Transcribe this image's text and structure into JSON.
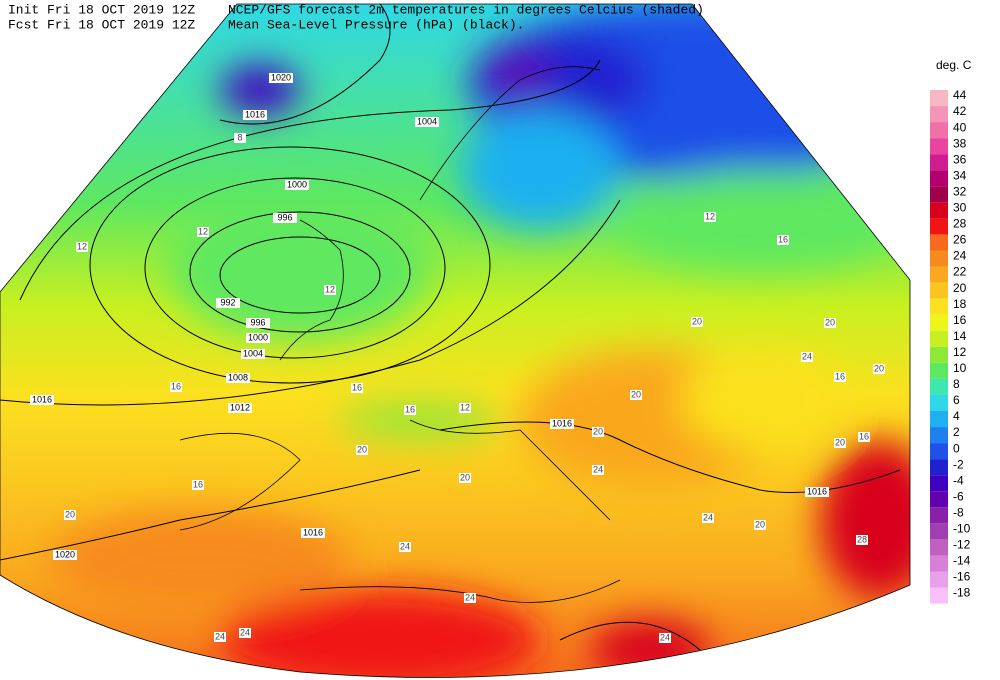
{
  "header": {
    "init": "Init  Fri 18 OCT 2019 12Z",
    "fcst": "Fcst Fri 18 OCT 2019 12Z",
    "title": "NCEP/GFS forecast 2m temperatures in degrees Celcius (shaded)",
    "subtitle": "Mean Sea-Level Pressure (hPa) (black)."
  },
  "legend": {
    "title": "deg. C",
    "entries": [
      {
        "label": 44,
        "color": "#f7b8c4"
      },
      {
        "label": 42,
        "color": "#f494b6"
      },
      {
        "label": 40,
        "color": "#f070aa"
      },
      {
        "label": 38,
        "color": "#e844a0"
      },
      {
        "label": 36,
        "color": "#d01c90"
      },
      {
        "label": 34,
        "color": "#b4006e"
      },
      {
        "label": 32,
        "color": "#a0004a"
      },
      {
        "label": 30,
        "color": "#d8001c"
      },
      {
        "label": 28,
        "color": "#f01414"
      },
      {
        "label": 26,
        "color": "#f56a1e"
      },
      {
        "label": 24,
        "color": "#f78a1e"
      },
      {
        "label": 22,
        "color": "#f9a81f"
      },
      {
        "label": 20,
        "color": "#fbc520"
      },
      {
        "label": 18,
        "color": "#fbe11f"
      },
      {
        "label": 16,
        "color": "#eef51a"
      },
      {
        "label": 14,
        "color": "#c8f020"
      },
      {
        "label": 12,
        "color": "#8fe838"
      },
      {
        "label": 10,
        "color": "#5ee860"
      },
      {
        "label": 8,
        "color": "#3de8b0"
      },
      {
        "label": 6,
        "color": "#2ed8e8"
      },
      {
        "label": 4,
        "color": "#1fb0f0"
      },
      {
        "label": 2,
        "color": "#1f80f0"
      },
      {
        "label": 0,
        "color": "#1f50e8"
      },
      {
        "label": -2,
        "color": "#2020d0"
      },
      {
        "label": -4,
        "color": "#4000c0"
      },
      {
        "label": -6,
        "color": "#6000b0"
      },
      {
        "label": -8,
        "color": "#8a20a8"
      },
      {
        "label": -10,
        "color": "#a040b0"
      },
      {
        "label": -12,
        "color": "#c060c0"
      },
      {
        "label": -14,
        "color": "#d880d8"
      },
      {
        "label": -16,
        "color": "#e8a0e8"
      },
      {
        "label": -18,
        "color": "#f8c0f8"
      }
    ]
  },
  "isobar_labels": [
    "1020",
    "1016",
    "1012",
    "1008",
    "1004",
    "1000",
    "996",
    "992",
    "996",
    "1000",
    "1004",
    "1016",
    "1020",
    "1016",
    "1016",
    "1016"
  ],
  "temperature_labels": [
    "12",
    "12",
    "8",
    "16",
    "16",
    "16",
    "12",
    "16",
    "20",
    "20",
    "20",
    "24",
    "24",
    "24",
    "24",
    "24",
    "20",
    "20",
    "20",
    "20",
    "24",
    "16",
    "12",
    "20",
    "16",
    "20",
    "16",
    "24",
    "20",
    "28",
    "24",
    "12"
  ]
}
